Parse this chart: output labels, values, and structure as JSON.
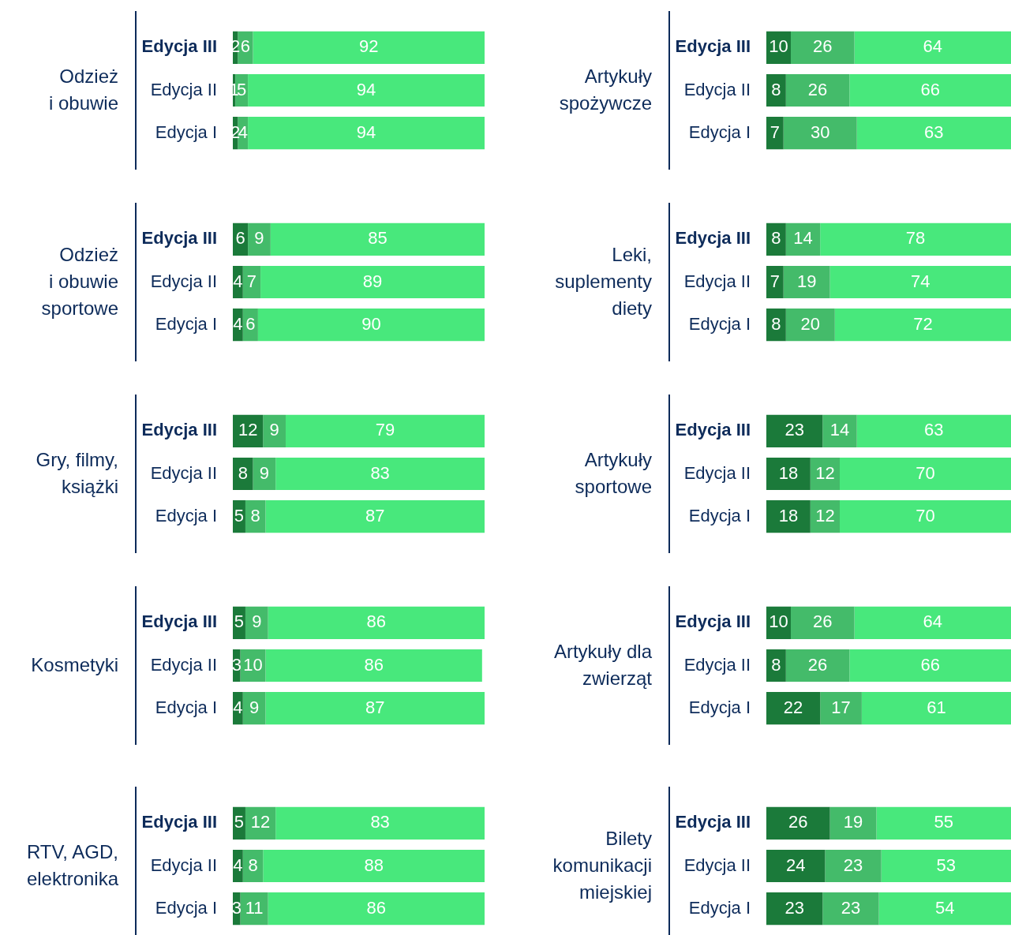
{
  "chart_data": [
    {
      "type": "bar",
      "orientation": "horizontal",
      "stacked": true,
      "title": "Odzież\ni obuwie",
      "categories": [
        "Edycja III",
        "Edycja II",
        "Edycja I"
      ],
      "xlim": [
        0,
        100
      ],
      "tick_labels": "y",
      "data_labels": true,
      "legend": false,
      "series": [
        {
          "color": "#1b7a3a",
          "values": [
            2,
            1,
            2
          ]
        },
        {
          "color": "#44bb6a",
          "values": [
            6,
            5,
            4
          ]
        },
        {
          "color": "#48e87c",
          "values": [
            92,
            94,
            94
          ]
        }
      ]
    },
    {
      "type": "bar",
      "orientation": "horizontal",
      "stacked": true,
      "title": "Odzież\ni obuwie\nsportowe",
      "categories": [
        "Edycja III",
        "Edycja II",
        "Edycja I"
      ],
      "xlim": [
        0,
        100
      ],
      "tick_labels": "y",
      "data_labels": true,
      "legend": false,
      "series": [
        {
          "color": "#1b7a3a",
          "values": [
            6,
            4,
            4
          ]
        },
        {
          "color": "#44bb6a",
          "values": [
            9,
            7,
            6
          ]
        },
        {
          "color": "#48e87c",
          "values": [
            85,
            89,
            90
          ]
        }
      ]
    },
    {
      "type": "bar",
      "orientation": "horizontal",
      "stacked": true,
      "title": "Gry, filmy,\nksiążki",
      "categories": [
        "Edycja III",
        "Edycja II",
        "Edycja I"
      ],
      "xlim": [
        0,
        100
      ],
      "tick_labels": "y",
      "data_labels": true,
      "legend": false,
      "series": [
        {
          "color": "#1b7a3a",
          "values": [
            12,
            8,
            5
          ]
        },
        {
          "color": "#44bb6a",
          "values": [
            9,
            9,
            8
          ]
        },
        {
          "color": "#48e87c",
          "values": [
            79,
            83,
            87
          ]
        }
      ]
    },
    {
      "type": "bar",
      "orientation": "horizontal",
      "stacked": true,
      "title": "Kosmetyki",
      "categories": [
        "Edycja III",
        "Edycja II",
        "Edycja I"
      ],
      "xlim": [
        0,
        100
      ],
      "tick_labels": "y",
      "data_labels": true,
      "legend": false,
      "series": [
        {
          "color": "#1b7a3a",
          "values": [
            5,
            3,
            4
          ]
        },
        {
          "color": "#44bb6a",
          "values": [
            9,
            10,
            9
          ]
        },
        {
          "color": "#48e87c",
          "values": [
            86,
            86,
            87
          ]
        }
      ]
    },
    {
      "type": "bar",
      "orientation": "horizontal",
      "stacked": true,
      "title": "RTV, AGD,\nelektronika",
      "categories": [
        "Edycja III",
        "Edycja II",
        "Edycja I"
      ],
      "xlim": [
        0,
        100
      ],
      "tick_labels": "y",
      "data_labels": true,
      "legend": false,
      "series": [
        {
          "color": "#1b7a3a",
          "values": [
            5,
            4,
            3
          ]
        },
        {
          "color": "#44bb6a",
          "values": [
            12,
            8,
            11
          ]
        },
        {
          "color": "#48e87c",
          "values": [
            83,
            88,
            86
          ]
        }
      ]
    },
    {
      "type": "bar",
      "orientation": "horizontal",
      "stacked": true,
      "title": "Artykuły\nspożywcze",
      "categories": [
        "Edycja III",
        "Edycja II",
        "Edycja I"
      ],
      "xlim": [
        0,
        100
      ],
      "tick_labels": "y",
      "data_labels": true,
      "legend": false,
      "series": [
        {
          "color": "#1b7a3a",
          "values": [
            10,
            8,
            7
          ]
        },
        {
          "color": "#44bb6a",
          "values": [
            26,
            26,
            30
          ]
        },
        {
          "color": "#48e87c",
          "values": [
            64,
            66,
            63
          ]
        }
      ]
    },
    {
      "type": "bar",
      "orientation": "horizontal",
      "stacked": true,
      "title": "Leki,\nsuplementy\ndiety",
      "categories": [
        "Edycja III",
        "Edycja II",
        "Edycja I"
      ],
      "xlim": [
        0,
        100
      ],
      "tick_labels": "y",
      "data_labels": true,
      "legend": false,
      "series": [
        {
          "color": "#1b7a3a",
          "values": [
            8,
            7,
            8
          ]
        },
        {
          "color": "#44bb6a",
          "values": [
            14,
            19,
            20
          ]
        },
        {
          "color": "#48e87c",
          "values": [
            78,
            74,
            72
          ]
        }
      ]
    },
    {
      "type": "bar",
      "orientation": "horizontal",
      "stacked": true,
      "title": "Artykuły\nsportowe",
      "categories": [
        "Edycja III",
        "Edycja II",
        "Edycja I"
      ],
      "xlim": [
        0,
        100
      ],
      "tick_labels": "y",
      "data_labels": true,
      "legend": false,
      "series": [
        {
          "color": "#1b7a3a",
          "values": [
            23,
            18,
            18
          ]
        },
        {
          "color": "#44bb6a",
          "values": [
            14,
            12,
            12
          ]
        },
        {
          "color": "#48e87c",
          "values": [
            63,
            70,
            70
          ]
        }
      ]
    },
    {
      "type": "bar",
      "orientation": "horizontal",
      "stacked": true,
      "title": "Artykuły dla\nzwierząt",
      "categories": [
        "Edycja III",
        "Edycja II",
        "Edycja I"
      ],
      "xlim": [
        0,
        100
      ],
      "tick_labels": "y",
      "data_labels": true,
      "legend": false,
      "series": [
        {
          "color": "#1b7a3a",
          "values": [
            10,
            8,
            22
          ]
        },
        {
          "color": "#44bb6a",
          "values": [
            26,
            26,
            17
          ]
        },
        {
          "color": "#48e87c",
          "values": [
            64,
            66,
            61
          ]
        }
      ]
    },
    {
      "type": "bar",
      "orientation": "horizontal",
      "stacked": true,
      "title": "Bilety\nkomunikacji\nmiejskiej",
      "categories": [
        "Edycja III",
        "Edycja II",
        "Edycja I"
      ],
      "xlim": [
        0,
        100
      ],
      "tick_labels": "y",
      "data_labels": true,
      "legend": false,
      "series": [
        {
          "color": "#1b7a3a",
          "values": [
            26,
            24,
            23
          ]
        },
        {
          "color": "#44bb6a",
          "values": [
            19,
            23,
            23
          ]
        },
        {
          "color": "#48e87c",
          "values": [
            55,
            53,
            54
          ]
        }
      ]
    }
  ]
}
